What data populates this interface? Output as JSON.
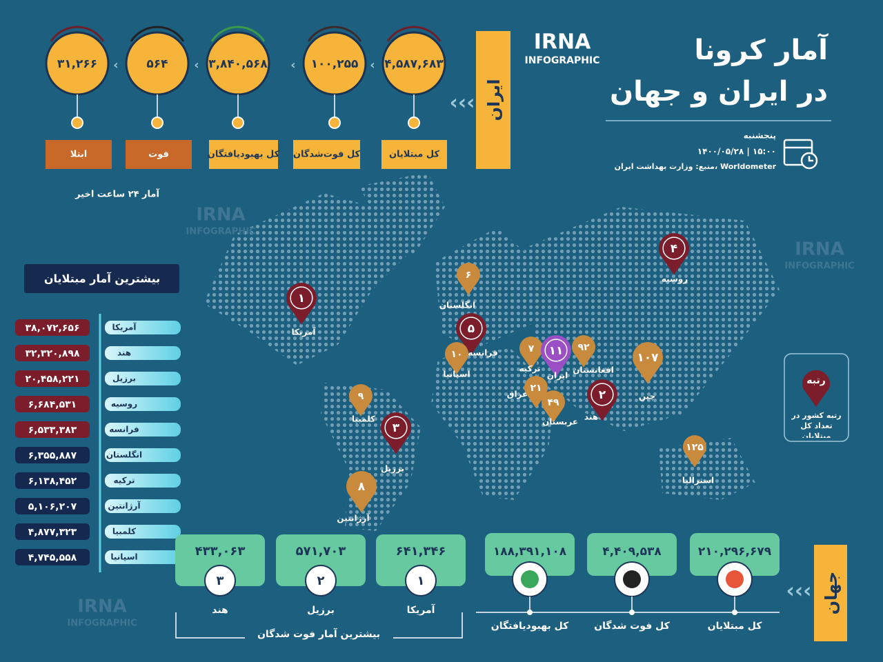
{
  "header": {
    "title_line1": "آمار کرونا",
    "title_line2": "در ایران و جهان",
    "logo": "IRNA",
    "logo_sub": "INFOGRAPHIC",
    "day": "پنجشنبه",
    "date_time": "۱۴۰۰/۰۵/۲۸ | ۱۵:۰۰",
    "source": "منبع: وزارت بهداشت ایران، Worldometer"
  },
  "iran": {
    "label": "ایران",
    "stats": [
      {
        "label": "کل مبتلایان",
        "value": "۴,۵۸۷,۶۸۳"
      },
      {
        "label": "کل فوت‌شدگان",
        "value": "۱۰۰,۲۵۵"
      },
      {
        "label": "کل بهبودیافتگان",
        "value": "۳,۸۴۰,۵۶۸"
      },
      {
        "label": "فوت",
        "value": "۵۶۴"
      },
      {
        "label": "ابتلا",
        "value": "۳۱,۲۶۶"
      }
    ],
    "note": "آمار ۲۴ ساعت اخیر"
  },
  "top_cases": {
    "title": "بیشترین آمار مبتلایان",
    "rows": [
      {
        "country": "آمریکا",
        "value": "۳۸,۰۷۲,۶۵۶"
      },
      {
        "country": "هند",
        "value": "۳۲,۳۲۰,۸۹۸"
      },
      {
        "country": "برزیل",
        "value": "۲۰,۴۵۸,۲۲۱"
      },
      {
        "country": "روسیه",
        "value": "۶,۶۸۴,۵۳۱"
      },
      {
        "country": "فرانسه",
        "value": "۶,۵۳۳,۳۸۳"
      },
      {
        "country": "انگلستان",
        "value": "۶,۳۵۵,۸۸۷"
      },
      {
        "country": "ترکیه",
        "value": "۶,۱۳۸,۴۵۲"
      },
      {
        "country": "آرژانتین",
        "value": "۵,۱۰۶,۲۰۷"
      },
      {
        "country": "کلمبیا",
        "value": "۴,۸۷۷,۳۲۳"
      },
      {
        "country": "اسپانیا",
        "value": "۴,۷۴۵,۵۵۸"
      }
    ]
  },
  "map": {
    "pins": [
      {
        "rank": "۱",
        "country": "آمریکا"
      },
      {
        "rank": "۴",
        "country": "روسیه"
      },
      {
        "rank": "۶",
        "country": "انگلستان"
      },
      {
        "rank": "۵",
        "country": "فرانسه"
      },
      {
        "rank": "۱۰",
        "country": "اسپانیا"
      },
      {
        "rank": "۷",
        "country": "ترکیه"
      },
      {
        "rank": "۱۱",
        "country": "ایران"
      },
      {
        "rank": "۹۲",
        "country": "افغانستان"
      },
      {
        "rank": "۱۰۷",
        "country": "چین"
      },
      {
        "rank": "۲",
        "country": "هند"
      },
      {
        "rank": "۲۱",
        "country": "عراق"
      },
      {
        "rank": "۴۹",
        "country": "عربستان"
      },
      {
        "rank": "۹",
        "country": "کلمبیا"
      },
      {
        "rank": "۳",
        "country": "برزیل"
      },
      {
        "rank": "۸",
        "country": "آرژانتین"
      },
      {
        "rank": "۱۲۵",
        "country": "استرالیا"
      }
    ],
    "legend_title": "رتبه",
    "legend_text": "رتبه کشور در تعداد کل مبتلایان"
  },
  "world": {
    "label": "جهان",
    "stats": [
      {
        "label": "کل مبتلایان",
        "value": "۲۱۰,۲۹۶,۶۷۹"
      },
      {
        "label": "کل فوت شدگان",
        "value": "۴,۴۰۹,۵۳۸"
      },
      {
        "label": "کل بهبودیافتگان",
        "value": "۱۸۸,۳۹۱,۱۰۸"
      }
    ]
  },
  "top_deaths": {
    "title": "بیشترین آمار فوت شدگان",
    "rows": [
      {
        "rank": "۱",
        "country": "آمریکا",
        "value": "۶۴۱,۳۴۶"
      },
      {
        "rank": "۲",
        "country": "برزیل",
        "value": "۵۷۱,۷۰۳"
      },
      {
        "rank": "۳",
        "country": "هند",
        "value": "۴۳۳,۰۶۳"
      }
    ]
  }
}
